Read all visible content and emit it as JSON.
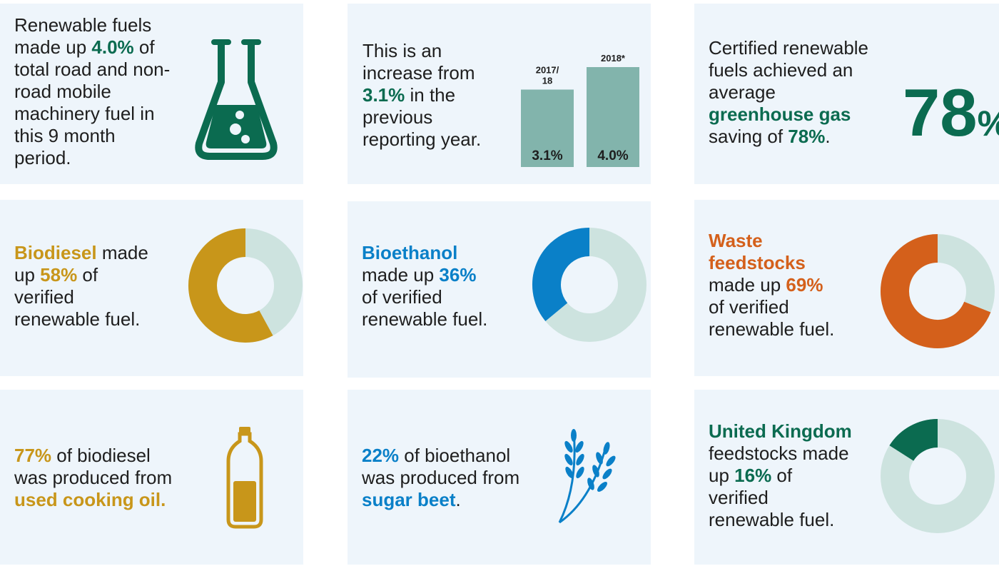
{
  "panels": [
    {
      "lines": [
        [
          "Renewable fuels"
        ],
        [
          "made up ",
          {
            "text": "4.0%",
            "color": "#0b6b50"
          },
          " of"
        ],
        [
          "total road and non-"
        ],
        [
          "road mobile"
        ],
        [
          "machinery fuel in"
        ],
        [
          "this 9 month"
        ],
        [
          "period."
        ]
      ]
    },
    {
      "lines": [
        [
          "This is an"
        ],
        [
          "increase from"
        ],
        [
          {
            "text": "3.1%",
            "color": "#0b6b50"
          },
          " in the"
        ],
        [
          "previous"
        ],
        [
          "reporting year."
        ]
      ],
      "chart": {
        "type": "bar",
        "categories": [
          "2017/\n18",
          "2018*"
        ],
        "values": [
          3.1,
          4.0
        ],
        "value_labels": [
          "3.1%",
          "4.0%"
        ],
        "color": "#82b4ac"
      }
    },
    {
      "lines": [
        [
          "Certified renewable"
        ],
        [
          "fuels achieved an"
        ],
        [
          "average"
        ],
        [
          {
            "text": "greenhouse gas",
            "color": "#0b6b50"
          }
        ],
        [
          "saving of ",
          {
            "text": "78%",
            "color": "#0b6b50"
          },
          "."
        ]
      ],
      "highlight": {
        "number": "78",
        "unit": "%",
        "color": "#0b6b50"
      }
    },
    {
      "lines": [
        [
          {
            "text": "Biodiesel",
            "color": "#c8961a"
          },
          " made"
        ],
        [
          "up ",
          {
            "text": "58%",
            "color": "#c8961a"
          },
          " of"
        ],
        [
          "verified"
        ],
        [
          "renewable fuel."
        ]
      ],
      "donut": {
        "value": 58,
        "color": "#c8961a",
        "track": "#cde3df"
      }
    },
    {
      "lines": [
        [
          {
            "text": "Bioethanol",
            "color": "#0a80c8"
          }
        ],
        [
          "made up ",
          {
            "text": "36%",
            "color": "#0a80c8"
          }
        ],
        [
          "of verified"
        ],
        [
          "renewable fuel."
        ]
      ],
      "donut": {
        "value": 36,
        "color": "#0a80c8",
        "track": "#cde3df"
      }
    },
    {
      "lines": [
        [
          {
            "text": "Waste",
            "color": "#d4601b"
          }
        ],
        [
          {
            "text": "feedstocks",
            "color": "#d4601b"
          }
        ],
        [
          "made up ",
          {
            "text": "69%",
            "color": "#d4601b"
          }
        ],
        [
          "of verified"
        ],
        [
          "renewable fuel."
        ]
      ],
      "donut": {
        "value": 69,
        "color": "#d4601b",
        "track": "#cde3df"
      }
    },
    {
      "lines": [
        [
          {
            "text": "77%",
            "color": "#c8961a"
          },
          " of biodiesel"
        ],
        [
          "was produced from"
        ],
        [
          {
            "text": "used cooking oil.",
            "color": "#c8961a"
          }
        ]
      ]
    },
    {
      "lines": [
        [
          {
            "text": "22%",
            "color": "#0a80c8"
          },
          " of bioethanol"
        ],
        [
          "was produced from"
        ],
        [
          {
            "text": "sugar beet",
            "color": "#0a80c8"
          },
          "."
        ]
      ]
    },
    {
      "lines": [
        [
          {
            "text": "United Kingdom",
            "color": "#0b6b50"
          }
        ],
        [
          "feedstocks made"
        ],
        [
          "up ",
          {
            "text": "16%",
            "color": "#0b6b50"
          },
          " of"
        ],
        [
          "verified"
        ],
        [
          "renewable fuel."
        ]
      ],
      "donut": {
        "value": 16,
        "color": "#0b6b50",
        "track": "#cde3df"
      }
    }
  ]
}
